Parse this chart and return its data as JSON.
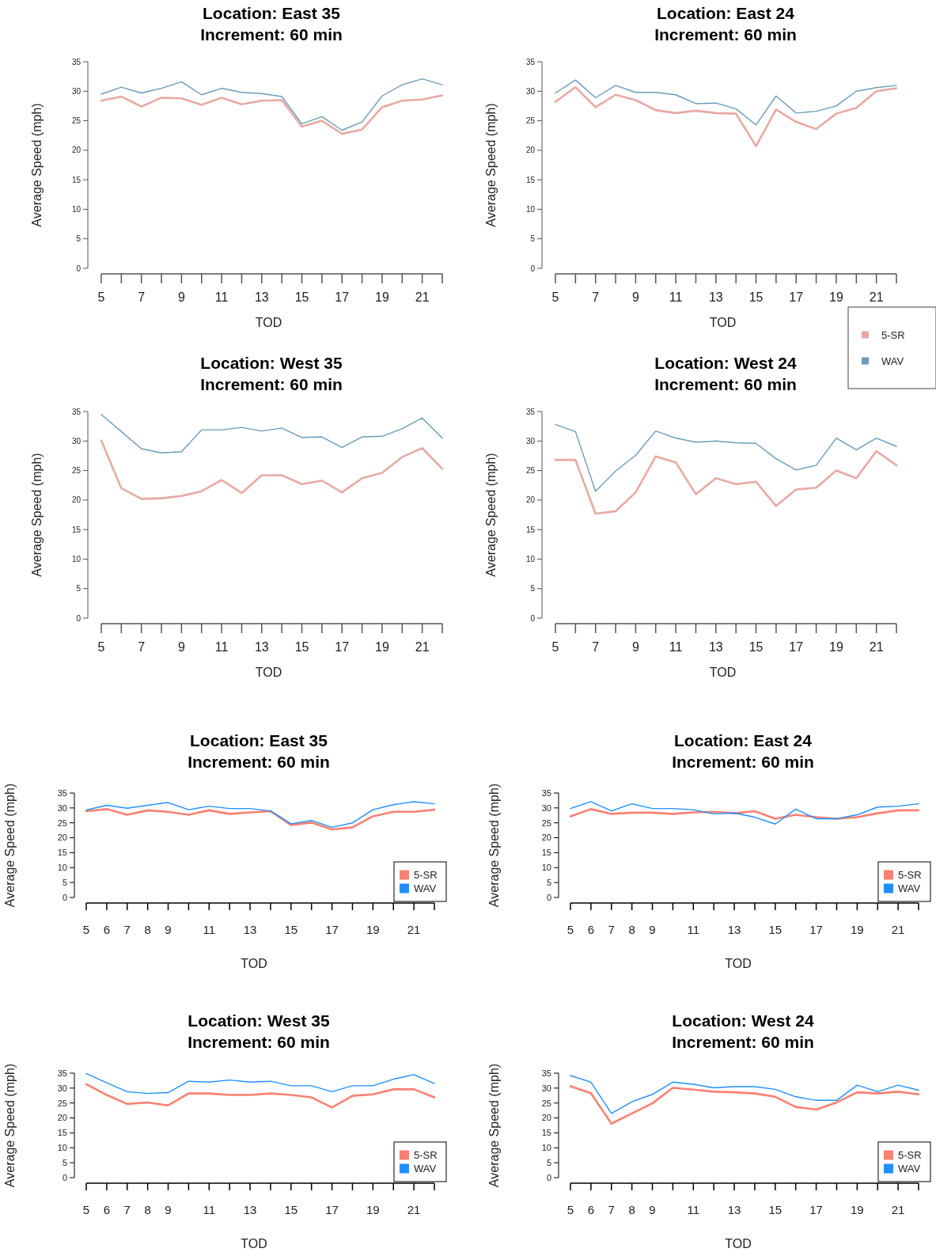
{
  "chart_data": [
    {
      "type": "line",
      "title": "Location: East 35\nIncrement: 60 min",
      "xlabel": "TOD",
      "ylabel": "Average Speed (mph)",
      "x": [
        5,
        6,
        7,
        8,
        9,
        10,
        11,
        12,
        13,
        14,
        15,
        16,
        17,
        18,
        19,
        20,
        21,
        22
      ],
      "xlim": [
        5,
        22
      ],
      "xticks": [
        5,
        {
          "value": 6,
          "label": null
        },
        7,
        {
          "value": 8,
          "label": null
        },
        9,
        {
          "value": 10,
          "label": null
        },
        11,
        {
          "value": 12,
          "label": null
        },
        13,
        {
          "value": 14,
          "label": null
        },
        15,
        {
          "value": 16,
          "label": null
        },
        17,
        {
          "value": 18,
          "label": null
        },
        19,
        {
          "value": 20,
          "label": null
        },
        21,
        {
          "value": 22,
          "label": null
        }
      ],
      "ylim": [
        0,
        35
      ],
      "yticks": [
        0,
        5,
        10,
        15,
        20,
        25,
        30,
        35
      ],
      "legend": false,
      "series": [
        {
          "color": "#e8a9a3",
          "values": [
            28.4,
            29.1,
            27.4,
            28.9,
            28.8,
            27.7,
            28.9,
            27.8,
            28.4,
            28.5,
            24.0,
            25.0,
            22.8,
            23.5,
            27.3,
            28.4,
            28.6,
            29.3
          ]
        },
        {
          "color": "#6b9bb8",
          "values": [
            29.5,
            30.7,
            29.7,
            30.5,
            31.6,
            29.4,
            30.5,
            29.8,
            29.6,
            29.1,
            24.5,
            25.7,
            23.4,
            24.8,
            29.2,
            31.1,
            32.1,
            31.1
          ]
        }
      ]
    },
    {
      "type": "line",
      "title": "Location: East 24\nIncrement: 60 min",
      "xlabel": "TOD",
      "ylabel": "Average Speed (mph)",
      "x": [
        5,
        6,
        7,
        8,
        9,
        10,
        11,
        12,
        13,
        14,
        15,
        16,
        17,
        18,
        19,
        20,
        21,
        22
      ],
      "xlim": [
        5,
        22
      ],
      "xticks": [
        5,
        {
          "value": 6,
          "label": null
        },
        7,
        {
          "value": 8,
          "label": null
        },
        9,
        {
          "value": 10,
          "label": null
        },
        11,
        {
          "value": 12,
          "label": null
        },
        13,
        {
          "value": 14,
          "label": null
        },
        15,
        {
          "value": 16,
          "label": null
        },
        17,
        {
          "value": 18,
          "label": null
        },
        19,
        {
          "value": 20,
          "label": null
        },
        21,
        {
          "value": 22,
          "label": null
        }
      ],
      "ylim": [
        0,
        35
      ],
      "yticks": [
        0,
        5,
        10,
        15,
        20,
        25,
        30,
        35
      ],
      "legend": "right",
      "series": [
        {
          "name": "5-SR",
          "color": "#e8a9a3",
          "values": [
            28.2,
            30.7,
            27.3,
            29.4,
            28.5,
            26.8,
            26.3,
            26.7,
            26.3,
            26.2,
            20.7,
            26.9,
            24.8,
            23.6,
            26.2,
            27.2,
            30.0,
            30.5
          ]
        },
        {
          "name": "WAV",
          "color": "#6b9bb8",
          "values": [
            29.7,
            31.9,
            28.9,
            31.0,
            29.8,
            29.8,
            29.4,
            27.9,
            28.0,
            27.0,
            24.3,
            29.2,
            26.3,
            26.6,
            27.5,
            30.0,
            30.6,
            31.0
          ]
        }
      ]
    },
    {
      "type": "line",
      "title": "Location: West 35\nIncrement: 60 min",
      "xlabel": "TOD",
      "ylabel": "Average Speed (mph)",
      "x": [
        5,
        6,
        7,
        8,
        9,
        10,
        11,
        12,
        13,
        14,
        15,
        16,
        17,
        18,
        19,
        20,
        21,
        22
      ],
      "xlim": [
        5,
        22
      ],
      "xticks": [
        5,
        {
          "value": 6,
          "label": null
        },
        7,
        {
          "value": 8,
          "label": null
        },
        9,
        {
          "value": 10,
          "label": null
        },
        11,
        {
          "value": 12,
          "label": null
        },
        13,
        {
          "value": 14,
          "label": null
        },
        15,
        {
          "value": 16,
          "label": null
        },
        17,
        {
          "value": 18,
          "label": null
        },
        19,
        {
          "value": 20,
          "label": null
        },
        21,
        {
          "value": 22,
          "label": null
        }
      ],
      "ylim": [
        0,
        35
      ],
      "yticks": [
        0,
        5,
        10,
        15,
        20,
        25,
        30,
        35
      ],
      "legend": false,
      "series": [
        {
          "color": "#e8a9a3",
          "values": [
            30.1,
            22.0,
            20.2,
            20.3,
            20.7,
            21.5,
            23.4,
            21.2,
            24.2,
            24.2,
            22.7,
            23.3,
            21.3,
            23.7,
            24.6,
            27.3,
            28.8,
            25.3
          ]
        },
        {
          "color": "#6b9bb8",
          "values": [
            34.5,
            31.6,
            28.7,
            28.0,
            28.2,
            31.9,
            31.9,
            32.3,
            31.7,
            32.2,
            30.6,
            30.7,
            28.9,
            30.7,
            30.8,
            32.1,
            33.9,
            30.5
          ]
        }
      ]
    },
    {
      "type": "line",
      "title": "Location: West 24\nIncrement: 60 min",
      "xlabel": "TOD",
      "ylabel": "Average Speed (mph)",
      "x": [
        5,
        6,
        7,
        8,
        9,
        10,
        11,
        12,
        13,
        14,
        15,
        16,
        17,
        18,
        19,
        20,
        21,
        22
      ],
      "xlim": [
        5,
        22
      ],
      "xticks": [
        5,
        {
          "value": 6,
          "label": null
        },
        7,
        {
          "value": 8,
          "label": null
        },
        9,
        {
          "value": 10,
          "label": null
        },
        11,
        {
          "value": 12,
          "label": null
        },
        13,
        {
          "value": 14,
          "label": null
        },
        15,
        {
          "value": 16,
          "label": null
        },
        17,
        {
          "value": 18,
          "label": null
        },
        19,
        {
          "value": 20,
          "label": null
        },
        21,
        {
          "value": 22,
          "label": null
        }
      ],
      "ylim": [
        0,
        35
      ],
      "yticks": [
        0,
        5,
        10,
        15,
        20,
        25,
        30,
        35
      ],
      "legend": false,
      "series": [
        {
          "color": "#e8a9a3",
          "values": [
            26.8,
            26.8,
            17.7,
            18.1,
            21.3,
            27.4,
            26.4,
            21.0,
            23.7,
            22.7,
            23.1,
            19.0,
            21.8,
            22.1,
            25.0,
            23.7,
            28.3,
            25.9
          ]
        },
        {
          "color": "#6b9bb8",
          "values": [
            32.8,
            31.6,
            21.5,
            24.9,
            27.6,
            31.7,
            30.5,
            29.8,
            30.0,
            29.7,
            29.6,
            27.0,
            25.1,
            25.9,
            30.5,
            28.5,
            30.5,
            29.1
          ]
        }
      ]
    },
    {
      "type": "line",
      "title": "Location: East 35\nIncrement: 60 min",
      "xlabel": "TOD",
      "ylabel": "Average Speed (mph)",
      "x": [
        5,
        6,
        7,
        8,
        9,
        10,
        11,
        12,
        13,
        14,
        15,
        16,
        17,
        18,
        19,
        20,
        21,
        22
      ],
      "xlim": [
        5,
        22
      ],
      "xticks": [
        5,
        6,
        7,
        8,
        9,
        {
          "value": 10,
          "label": null
        },
        11,
        {
          "value": 12,
          "label": null
        },
        13,
        {
          "value": 14,
          "label": null
        },
        15,
        {
          "value": 16,
          "label": null
        },
        17,
        {
          "value": 18,
          "label": null
        },
        19,
        {
          "value": 20,
          "label": null
        },
        21,
        {
          "value": 22,
          "label": null
        }
      ],
      "ylim": [
        0,
        35
      ],
      "yticks": [
        0,
        5,
        10,
        15,
        20,
        25,
        30,
        35
      ],
      "legend": "bottom right",
      "series": [
        {
          "name": "5-SR",
          "color": "#fa8072",
          "values": [
            28.9,
            29.6,
            27.7,
            29.2,
            28.7,
            27.7,
            29.2,
            28.0,
            28.5,
            28.9,
            24.3,
            25.1,
            22.8,
            23.5,
            27.2,
            28.7,
            28.7,
            29.4
          ]
        },
        {
          "name": "WAV",
          "color": "#1e90ff",
          "values": [
            29.3,
            30.9,
            29.9,
            30.9,
            31.8,
            29.4,
            30.6,
            29.8,
            29.8,
            29.0,
            24.7,
            25.8,
            23.5,
            25.0,
            29.4,
            31.1,
            32.1,
            31.4
          ]
        }
      ]
    },
    {
      "type": "line",
      "title": "Location: East 24\nIncrement: 60 min",
      "xlabel": "TOD",
      "ylabel": "Average Speed (mph)",
      "x": [
        5,
        6,
        7,
        8,
        9,
        10,
        11,
        12,
        13,
        14,
        15,
        16,
        17,
        18,
        19,
        20,
        21,
        22
      ],
      "xlim": [
        5,
        22
      ],
      "xticks": [
        5,
        6,
        7,
        8,
        9,
        {
          "value": 10,
          "label": null
        },
        11,
        {
          "value": 12,
          "label": null
        },
        13,
        {
          "value": 14,
          "label": null
        },
        15,
        {
          "value": 16,
          "label": null
        },
        17,
        {
          "value": 18,
          "label": null
        },
        19,
        {
          "value": 20,
          "label": null
        },
        21,
        {
          "value": 22,
          "label": null
        }
      ],
      "ylim": [
        0,
        35
      ],
      "yticks": [
        0,
        5,
        10,
        15,
        20,
        25,
        30,
        35
      ],
      "legend": "bottom right",
      "series": [
        {
          "name": "5-SR",
          "color": "#fa8072",
          "values": [
            27.2,
            29.6,
            28.0,
            28.4,
            28.4,
            28.0,
            28.5,
            28.7,
            28.2,
            28.9,
            26.4,
            27.7,
            26.9,
            26.4,
            26.9,
            28.2,
            29.2,
            29.2
          ]
        },
        {
          "name": "WAV",
          "color": "#1e90ff",
          "values": [
            29.8,
            32.1,
            29.0,
            31.4,
            29.8,
            29.8,
            29.4,
            28.0,
            28.3,
            26.9,
            24.6,
            29.6,
            26.4,
            26.4,
            27.7,
            30.3,
            30.6,
            31.4
          ]
        }
      ]
    },
    {
      "type": "line",
      "title": "Location: West 35\nIncrement: 60 min",
      "xlabel": "TOD",
      "ylabel": "Average Speed (mph)",
      "x": [
        5,
        6,
        7,
        8,
        9,
        10,
        11,
        12,
        13,
        14,
        15,
        16,
        17,
        18,
        19,
        20,
        21,
        22
      ],
      "xlim": [
        5,
        22
      ],
      "xticks": [
        5,
        6,
        7,
        8,
        9,
        {
          "value": 10,
          "label": null
        },
        11,
        {
          "value": 12,
          "label": null
        },
        13,
        {
          "value": 14,
          "label": null
        },
        15,
        {
          "value": 16,
          "label": null
        },
        17,
        {
          "value": 18,
          "label": null
        },
        19,
        {
          "value": 20,
          "label": null
        },
        21,
        {
          "value": 22,
          "label": null
        }
      ],
      "ylim": [
        0,
        35
      ],
      "yticks": [
        0,
        5,
        10,
        15,
        20,
        25,
        30,
        35
      ],
      "legend": "bottom right",
      "series": [
        {
          "name": "5-SR",
          "color": "#fa8072",
          "values": [
            31.3,
            27.7,
            24.7,
            25.2,
            24.2,
            28.2,
            28.2,
            27.7,
            27.7,
            28.2,
            27.7,
            26.9,
            23.5,
            27.4,
            27.9,
            29.6,
            29.6,
            26.9
          ]
        },
        {
          "name": "WAV",
          "color": "#1e90ff",
          "values": [
            34.9,
            31.8,
            28.8,
            28.2,
            28.5,
            32.3,
            32.0,
            32.7,
            32.0,
            32.3,
            30.8,
            30.8,
            28.8,
            30.8,
            30.8,
            33.0,
            34.5,
            31.5
          ]
        }
      ]
    },
    {
      "type": "line",
      "title": "Location: West 24\nIncrement: 60 min",
      "xlabel": "TOD",
      "ylabel": "Average Speed (mph)",
      "x": [
        5,
        6,
        7,
        8,
        9,
        10,
        11,
        12,
        13,
        14,
        15,
        16,
        17,
        18,
        19,
        20,
        21,
        22
      ],
      "xlim": [
        5,
        22
      ],
      "xticks": [
        5,
        6,
        7,
        8,
        9,
        {
          "value": 10,
          "label": null
        },
        11,
        {
          "value": 12,
          "label": null
        },
        13,
        {
          "value": 14,
          "label": null
        },
        15,
        {
          "value": 16,
          "label": null
        },
        17,
        {
          "value": 18,
          "label": null
        },
        19,
        {
          "value": 20,
          "label": null
        },
        21,
        {
          "value": 22,
          "label": null
        }
      ],
      "ylim": [
        0,
        35
      ],
      "yticks": [
        0,
        5,
        10,
        15,
        20,
        25,
        30,
        35
      ],
      "legend": "bottom right",
      "series": [
        {
          "name": "5-SR",
          "color": "#fa8072",
          "values": [
            30.6,
            28.3,
            18.1,
            21.5,
            24.9,
            30.1,
            29.5,
            28.8,
            28.6,
            28.2,
            27.1,
            23.7,
            22.8,
            25.2,
            28.6,
            28.2,
            28.8,
            27.9
          ]
        },
        {
          "name": "WAV",
          "color": "#1e90ff",
          "values": [
            34.2,
            32.0,
            21.5,
            25.4,
            27.9,
            32.0,
            31.3,
            30.1,
            30.5,
            30.5,
            29.6,
            27.1,
            25.9,
            25.9,
            31.0,
            28.8,
            31.0,
            29.3
          ]
        }
      ]
    }
  ]
}
